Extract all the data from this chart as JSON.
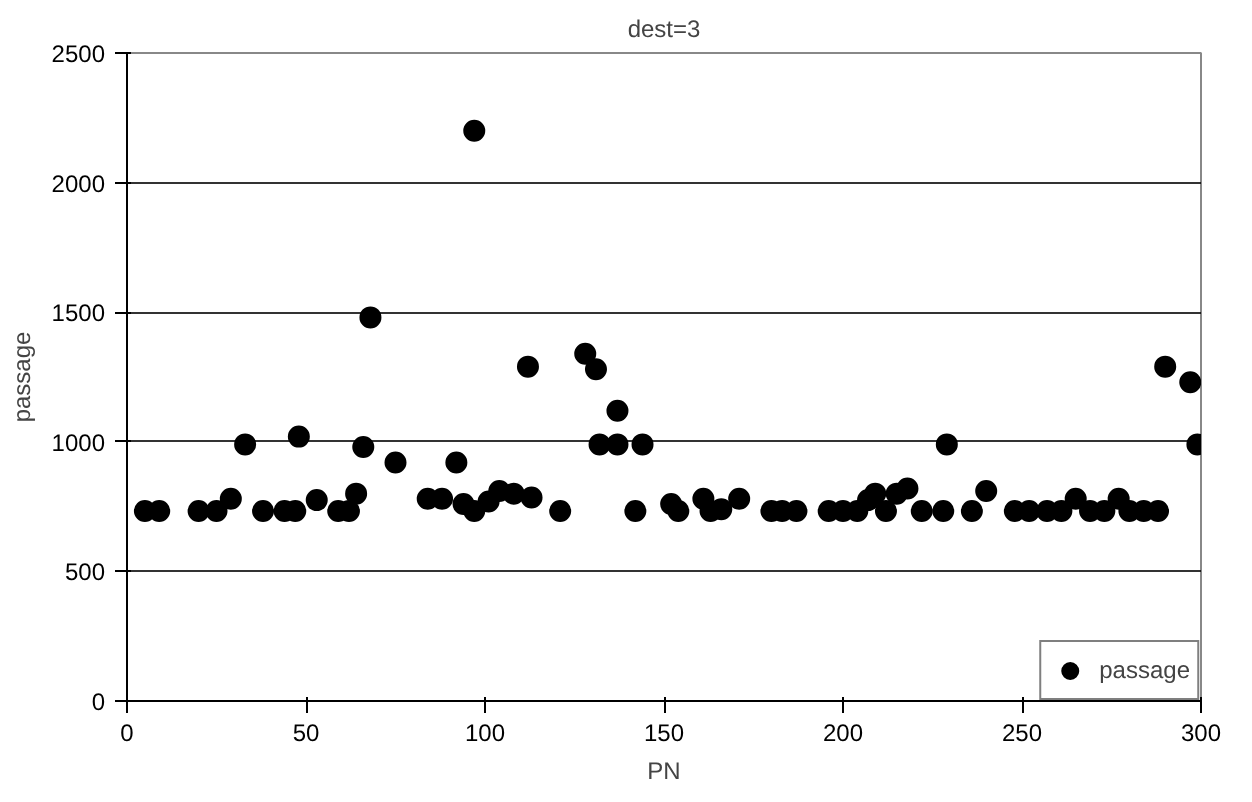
{
  "chart_data": {
    "type": "scatter",
    "title": "dest=3",
    "xlabel": "PN",
    "ylabel": "passage",
    "xlim": [
      0,
      300
    ],
    "xticks": [
      0,
      50,
      100,
      150,
      200,
      250,
      300
    ],
    "ylim": [
      0,
      2500
    ],
    "yticks": [
      0,
      500,
      1000,
      1500,
      2000,
      2500
    ],
    "grid": "y",
    "legend": "bottom right",
    "marker": "circle",
    "series": [
      {
        "name": "passage",
        "color": "#000000",
        "x": [
          5,
          9,
          20,
          25,
          29,
          33,
          38,
          44,
          47,
          48,
          53,
          59,
          62,
          64,
          66,
          68,
          75,
          84,
          88,
          92,
          94,
          97,
          97,
          101,
          104,
          108,
          112,
          113,
          121,
          128,
          131,
          132,
          137,
          137,
          144,
          142,
          152,
          154,
          161,
          163,
          166,
          171,
          180,
          183,
          187,
          196,
          200,
          204,
          207,
          209,
          212,
          215,
          218,
          222,
          228,
          229,
          236,
          240,
          248,
          252,
          257,
          261,
          265,
          269,
          273,
          277,
          280,
          284,
          288,
          290,
          297,
          299
        ],
        "values": [
          733,
          733,
          733,
          733,
          780,
          990,
          733,
          733,
          733,
          1020,
          775,
          733,
          733,
          800,
          980,
          1480,
          920,
          780,
          780,
          920,
          760,
          733,
          2200,
          770,
          810,
          800,
          1290,
          785,
          733,
          1340,
          1280,
          990,
          1120,
          990,
          990,
          733,
          760,
          733,
          780,
          733,
          740,
          780,
          733,
          733,
          733,
          733,
          733,
          733,
          775,
          800,
          733,
          800,
          820,
          733,
          733,
          990,
          733,
          810,
          733,
          733,
          733,
          733,
          780,
          733,
          733,
          780,
          733,
          733,
          733,
          1290,
          1230,
          990
        ]
      }
    ]
  }
}
